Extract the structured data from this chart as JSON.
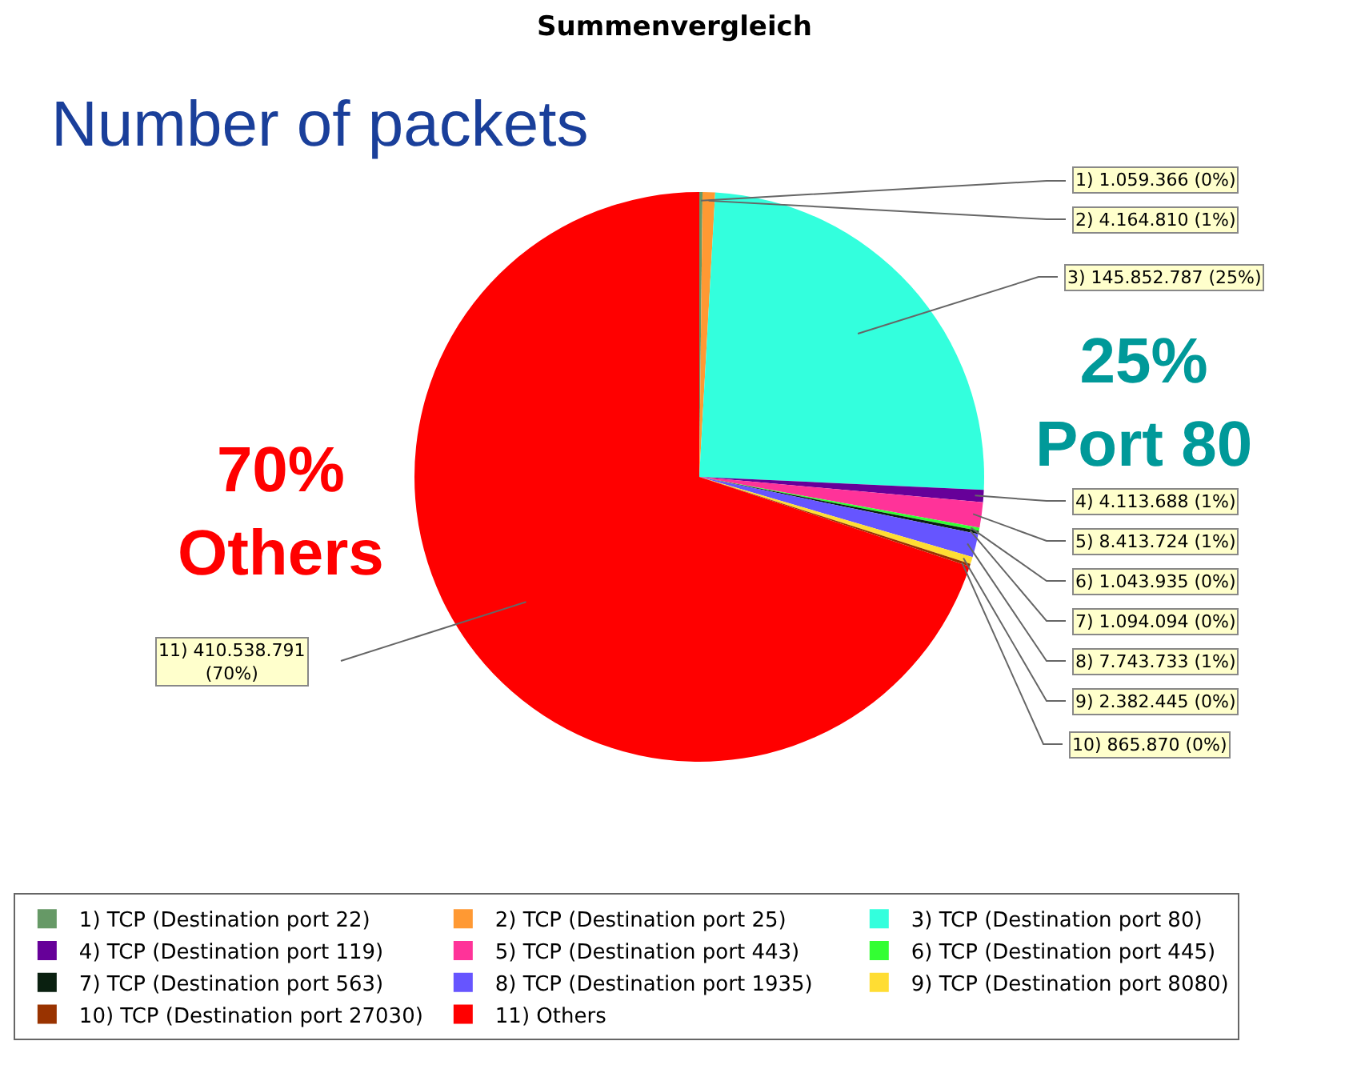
{
  "chart_data": {
    "type": "pie",
    "title": "Summenvergleich",
    "categories": [
      "1) TCP (Destination port 22)",
      "2) TCP (Destination port 25)",
      "3) TCP (Destination port 80)",
      "4) TCP (Destination port 119)",
      "5) TCP (Destination port 443)",
      "6) TCP (Destination port 445)",
      "7) TCP (Destination port 563)",
      "8) TCP (Destination port 1935)",
      "9) TCP (Destination port 8080)",
      "10) TCP (Destination port 27030)",
      "11) Others"
    ],
    "values": [
      1059366,
      4164810,
      145852787,
      4113688,
      8413724,
      1043935,
      1094094,
      7743733,
      2382445,
      865870,
      410538791
    ],
    "value_labels": [
      "1) 1.059.366 (0%)",
      "2) 4.164.810 (1%)",
      "3) 145.852.787 (25%)",
      "4) 4.113.688 (1%)",
      "5) 8.413.724 (1%)",
      "6) 1.043.935 (0%)",
      "7) 1.094.094 (0%)",
      "8) 7.743.733 (1%)",
      "9) 2.382.445 (0%)",
      "10) 865.870 (0%)",
      "11) 410.538.791 (70%)"
    ],
    "colors": [
      "#669966",
      "#ff9933",
      "#33ffdd",
      "#660099",
      "#ff3399",
      "#33ff33",
      "#0a2010",
      "#6655ff",
      "#ffdd33",
      "#993300",
      "#ff0000"
    ],
    "annotations": [
      "Number of packets",
      "70%\nOthers",
      "25%\nPort 80"
    ],
    "legend": "bottom"
  }
}
